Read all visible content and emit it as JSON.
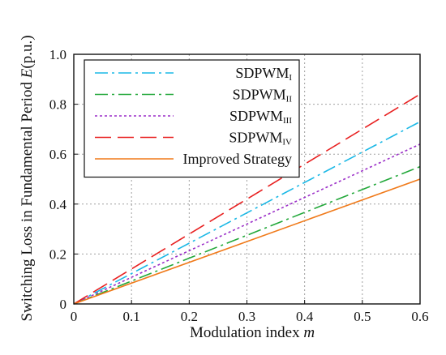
{
  "chart_data": {
    "type": "line",
    "xlabel": {
      "text": "Modulation index ",
      "italic": "m"
    },
    "ylabel": {
      "text": "Switching Loss in Fundamental Period ",
      "italic": "E",
      "suffix": "(p.u.)"
    },
    "xlim": [
      0,
      0.6
    ],
    "ylim": [
      0,
      1.0
    ],
    "x_ticks": [
      "0",
      "0.1",
      "0.2",
      "0.3",
      "0.4",
      "0.5",
      "0.6"
    ],
    "y_ticks": [
      "0",
      "0.2",
      "0.4",
      "0.6",
      "0.8",
      "1.0"
    ],
    "grid": true,
    "legend_position": "top-left",
    "series": [
      {
        "name": "SDPWM",
        "subscript": "I",
        "color": "#1ab8e6",
        "dash": "dash-dot",
        "x": [
          0,
          0.6
        ],
        "y": [
          0,
          0.73
        ]
      },
      {
        "name": "SDPWM",
        "subscript": "II",
        "color": "#22a83a",
        "dash": "dash-dot",
        "x": [
          0,
          0.6
        ],
        "y": [
          0,
          0.55
        ]
      },
      {
        "name": "SDPWM",
        "subscript": "III",
        "color": "#9b2fc8",
        "dash": "dot",
        "x": [
          0,
          0.6
        ],
        "y": [
          0,
          0.64
        ]
      },
      {
        "name": "SDPWM",
        "subscript": "IV",
        "color": "#e82020",
        "dash": "long-dash",
        "x": [
          0,
          0.6
        ],
        "y": [
          0,
          0.84
        ]
      },
      {
        "name": "Improved Strategy",
        "subscript": "",
        "color": "#f07a1a",
        "dash": "solid",
        "x": [
          0,
          0.6
        ],
        "y": [
          0,
          0.5
        ]
      }
    ]
  }
}
